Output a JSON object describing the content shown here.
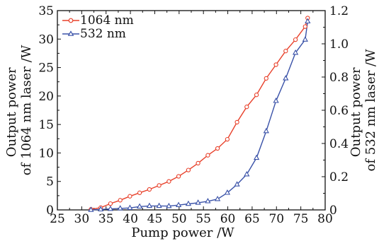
{
  "chart_data": {
    "type": "line",
    "xlabel": "Pump power /W",
    "ylabel_left": [
      "Output power",
      "of 1064 nm laser /W"
    ],
    "ylabel_right": [
      "Output power",
      "of 532 nm laser /W"
    ],
    "xlim": [
      25,
      80
    ],
    "ylim_left": [
      0,
      35
    ],
    "ylim_right": [
      0,
      1.2
    ],
    "xticks": [
      25,
      30,
      35,
      40,
      45,
      50,
      55,
      60,
      65,
      70,
      75,
      80
    ],
    "yticks_left": [
      0,
      5,
      10,
      15,
      20,
      25,
      30,
      35
    ],
    "yticks_right": [
      0,
      0.2,
      0.4,
      0.6,
      0.8,
      1.0,
      1.2
    ],
    "yticks_right_labels": [
      "0",
      "0.2",
      "0.4",
      "0.6",
      "0.8",
      "1.0",
      "1.2"
    ],
    "grid": false,
    "legend_position": "top-left",
    "series": [
      {
        "name": "1064 nm",
        "axis": "left",
        "color": "#e8402a",
        "marker": "circle",
        "x": [
          31.9,
          33.9,
          35.9,
          37.9,
          39.9,
          41.9,
          43.9,
          45.9,
          47.9,
          49.9,
          51.9,
          53.9,
          55.9,
          57.9,
          59.9,
          61.9,
          63.9,
          65.9,
          67.9,
          69.9,
          71.9,
          73.9,
          75.9
        ],
        "values": [
          0.1,
          0.4,
          1.1,
          1.7,
          2.4,
          3.0,
          3.6,
          4.3,
          5.0,
          5.9,
          7.0,
          8.2,
          9.6,
          10.8,
          12.4,
          15.4,
          18.1,
          20.2,
          23.1,
          25.5,
          27.9,
          29.9,
          32.2
        ]
      },
      {
        "name": "532 nm",
        "axis": "right",
        "color": "#3a52a8",
        "marker": "triangle",
        "x": [
          31.9,
          33.9,
          35.9,
          37.9,
          39.9,
          41.9,
          43.9,
          45.9,
          47.9,
          49.9,
          51.9,
          53.9,
          55.9,
          57.9,
          59.9,
          61.9,
          63.9,
          65.9,
          67.9,
          69.9,
          71.9,
          73.9,
          75.9
        ],
        "values": [
          0.0,
          0.003,
          0.006,
          0.009,
          0.012,
          0.02,
          0.024,
          0.024,
          0.023,
          0.029,
          0.036,
          0.043,
          0.052,
          0.065,
          0.103,
          0.153,
          0.214,
          0.313,
          0.474,
          0.656,
          0.792,
          0.946,
          1.025
        ]
      }
    ],
    "endpoints": {
      "x": 76.4,
      "series_1064": 33.7,
      "series_532": 1.135
    }
  }
}
